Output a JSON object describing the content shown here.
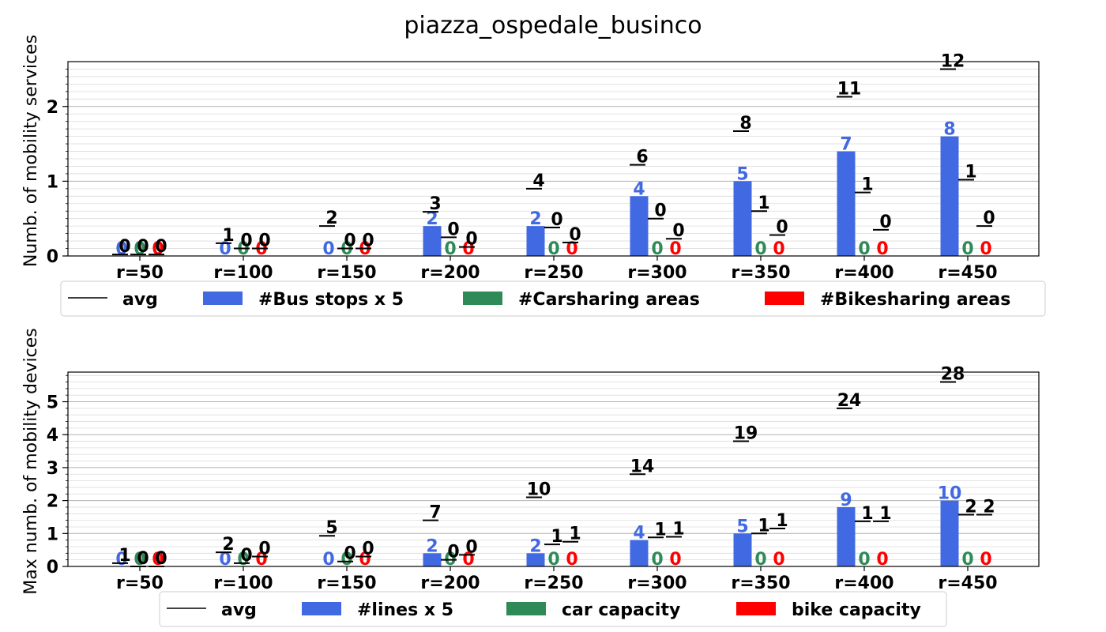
{
  "title": "piazza_ospedale_businco",
  "colors": {
    "bus": "#4169e1",
    "car": "#2e8b57",
    "bike": "#ff0000",
    "avg": "#000000"
  },
  "chart_data": [
    {
      "type": "bar",
      "title": "piazza_ospedale_businco",
      "ylabel": "Numb. of mobility services",
      "categories": [
        "r=50",
        "r=100",
        "r=150",
        "r=200",
        "r=250",
        "r=300",
        "r=350",
        "r=400",
        "r=450"
      ],
      "ylim": [
        0,
        2.6
      ],
      "yticks": [
        0,
        1,
        2
      ],
      "grid": true,
      "legend": "below",
      "series": [
        {
          "name": "#Bus stops x 5",
          "color": "#4169e1",
          "values": [
            0,
            0,
            0,
            0.4,
            0.4,
            0.8,
            1.0,
            1.4,
            1.6
          ],
          "labels": [
            "0",
            "0",
            "0",
            "2",
            "2",
            "4",
            "5",
            "7",
            "8"
          ]
        },
        {
          "name": "#Carsharing areas",
          "color": "#2e8b57",
          "values": [
            0,
            0,
            0,
            0,
            0,
            0,
            0,
            0,
            0
          ],
          "labels": [
            "0",
            "0",
            "0",
            "0",
            "0",
            "0",
            "0",
            "0",
            "0"
          ]
        },
        {
          "name": "#Bikesharing areas",
          "color": "#ff0000",
          "values": [
            0,
            0,
            0,
            0,
            0,
            0,
            0,
            0,
            0
          ],
          "labels": [
            "0",
            "0",
            "0",
            "0",
            "0",
            "0",
            "0",
            "0",
            "0"
          ]
        }
      ],
      "avg": {
        "name": "avg",
        "bus": [
          0.02,
          0.17,
          0.4,
          0.59,
          0.9,
          1.22,
          1.67,
          2.13,
          2.5
        ],
        "bus_labels": [
          "0",
          "1",
          "2",
          "3",
          "4",
          "6",
          "8",
          "11",
          "12"
        ],
        "car": [
          0.02,
          0.1,
          0.1,
          0.25,
          0.38,
          0.5,
          0.6,
          0.85,
          1.02
        ],
        "car_labels": [
          "0",
          "0",
          "0",
          "0",
          "0",
          "0",
          "1",
          "1",
          "1"
        ],
        "bike": [
          0.02,
          0.1,
          0.1,
          0.12,
          0.18,
          0.23,
          0.28,
          0.35,
          0.4
        ],
        "bike_labels": [
          "0",
          "0",
          "0",
          "0",
          "0",
          "0",
          "0",
          "0",
          "0"
        ]
      }
    },
    {
      "type": "bar",
      "ylabel": "Max numb. of mobility devices",
      "categories": [
        "r=50",
        "r=100",
        "r=150",
        "r=200",
        "r=250",
        "r=300",
        "r=350",
        "r=400",
        "r=450"
      ],
      "ylim": [
        0,
        5.9
      ],
      "yticks": [
        0,
        1,
        2,
        3,
        4,
        5
      ],
      "grid": true,
      "legend": "below",
      "series": [
        {
          "name": "#lines x 5",
          "color": "#4169e1",
          "values": [
            0,
            0,
            0,
            0.4,
            0.4,
            0.8,
            1.0,
            1.8,
            2.0
          ],
          "labels": [
            "0",
            "0",
            "0",
            "2",
            "2",
            "4",
            "5",
            "9",
            "10"
          ]
        },
        {
          "name": "car capacity",
          "color": "#2e8b57",
          "values": [
            0,
            0,
            0,
            0,
            0,
            0,
            0,
            0,
            0
          ],
          "labels": [
            "0",
            "0",
            "0",
            "0",
            "0",
            "0",
            "0",
            "0",
            "0"
          ]
        },
        {
          "name": "bike capacity",
          "color": "#ff0000",
          "values": [
            0,
            0,
            0,
            0,
            0,
            0,
            0,
            0,
            0
          ],
          "labels": [
            "0",
            "0",
            "0",
            "0",
            "0",
            "0",
            "0",
            "0",
            "0"
          ]
        }
      ],
      "avg": {
        "name": "avg",
        "bus": [
          0.1,
          0.43,
          0.93,
          1.4,
          2.1,
          2.8,
          3.8,
          4.8,
          5.6
        ],
        "bus_labels": [
          "1",
          "2",
          "5",
          "7",
          "10",
          "14",
          "19",
          "24",
          "28"
        ],
        "car": [
          0.0,
          0.1,
          0.15,
          0.2,
          0.67,
          0.88,
          1.0,
          1.37,
          1.57
        ],
        "car_labels": [
          "0",
          "0",
          "0",
          "0",
          "1",
          "1",
          "1",
          "1",
          "2"
        ],
        "bike": [
          0.0,
          0.3,
          0.3,
          0.35,
          0.75,
          0.9,
          1.15,
          1.37,
          1.57
        ],
        "bike_labels": [
          "0",
          "0",
          "0",
          "0",
          "1",
          "1",
          "1",
          "1",
          "2"
        ]
      }
    }
  ]
}
